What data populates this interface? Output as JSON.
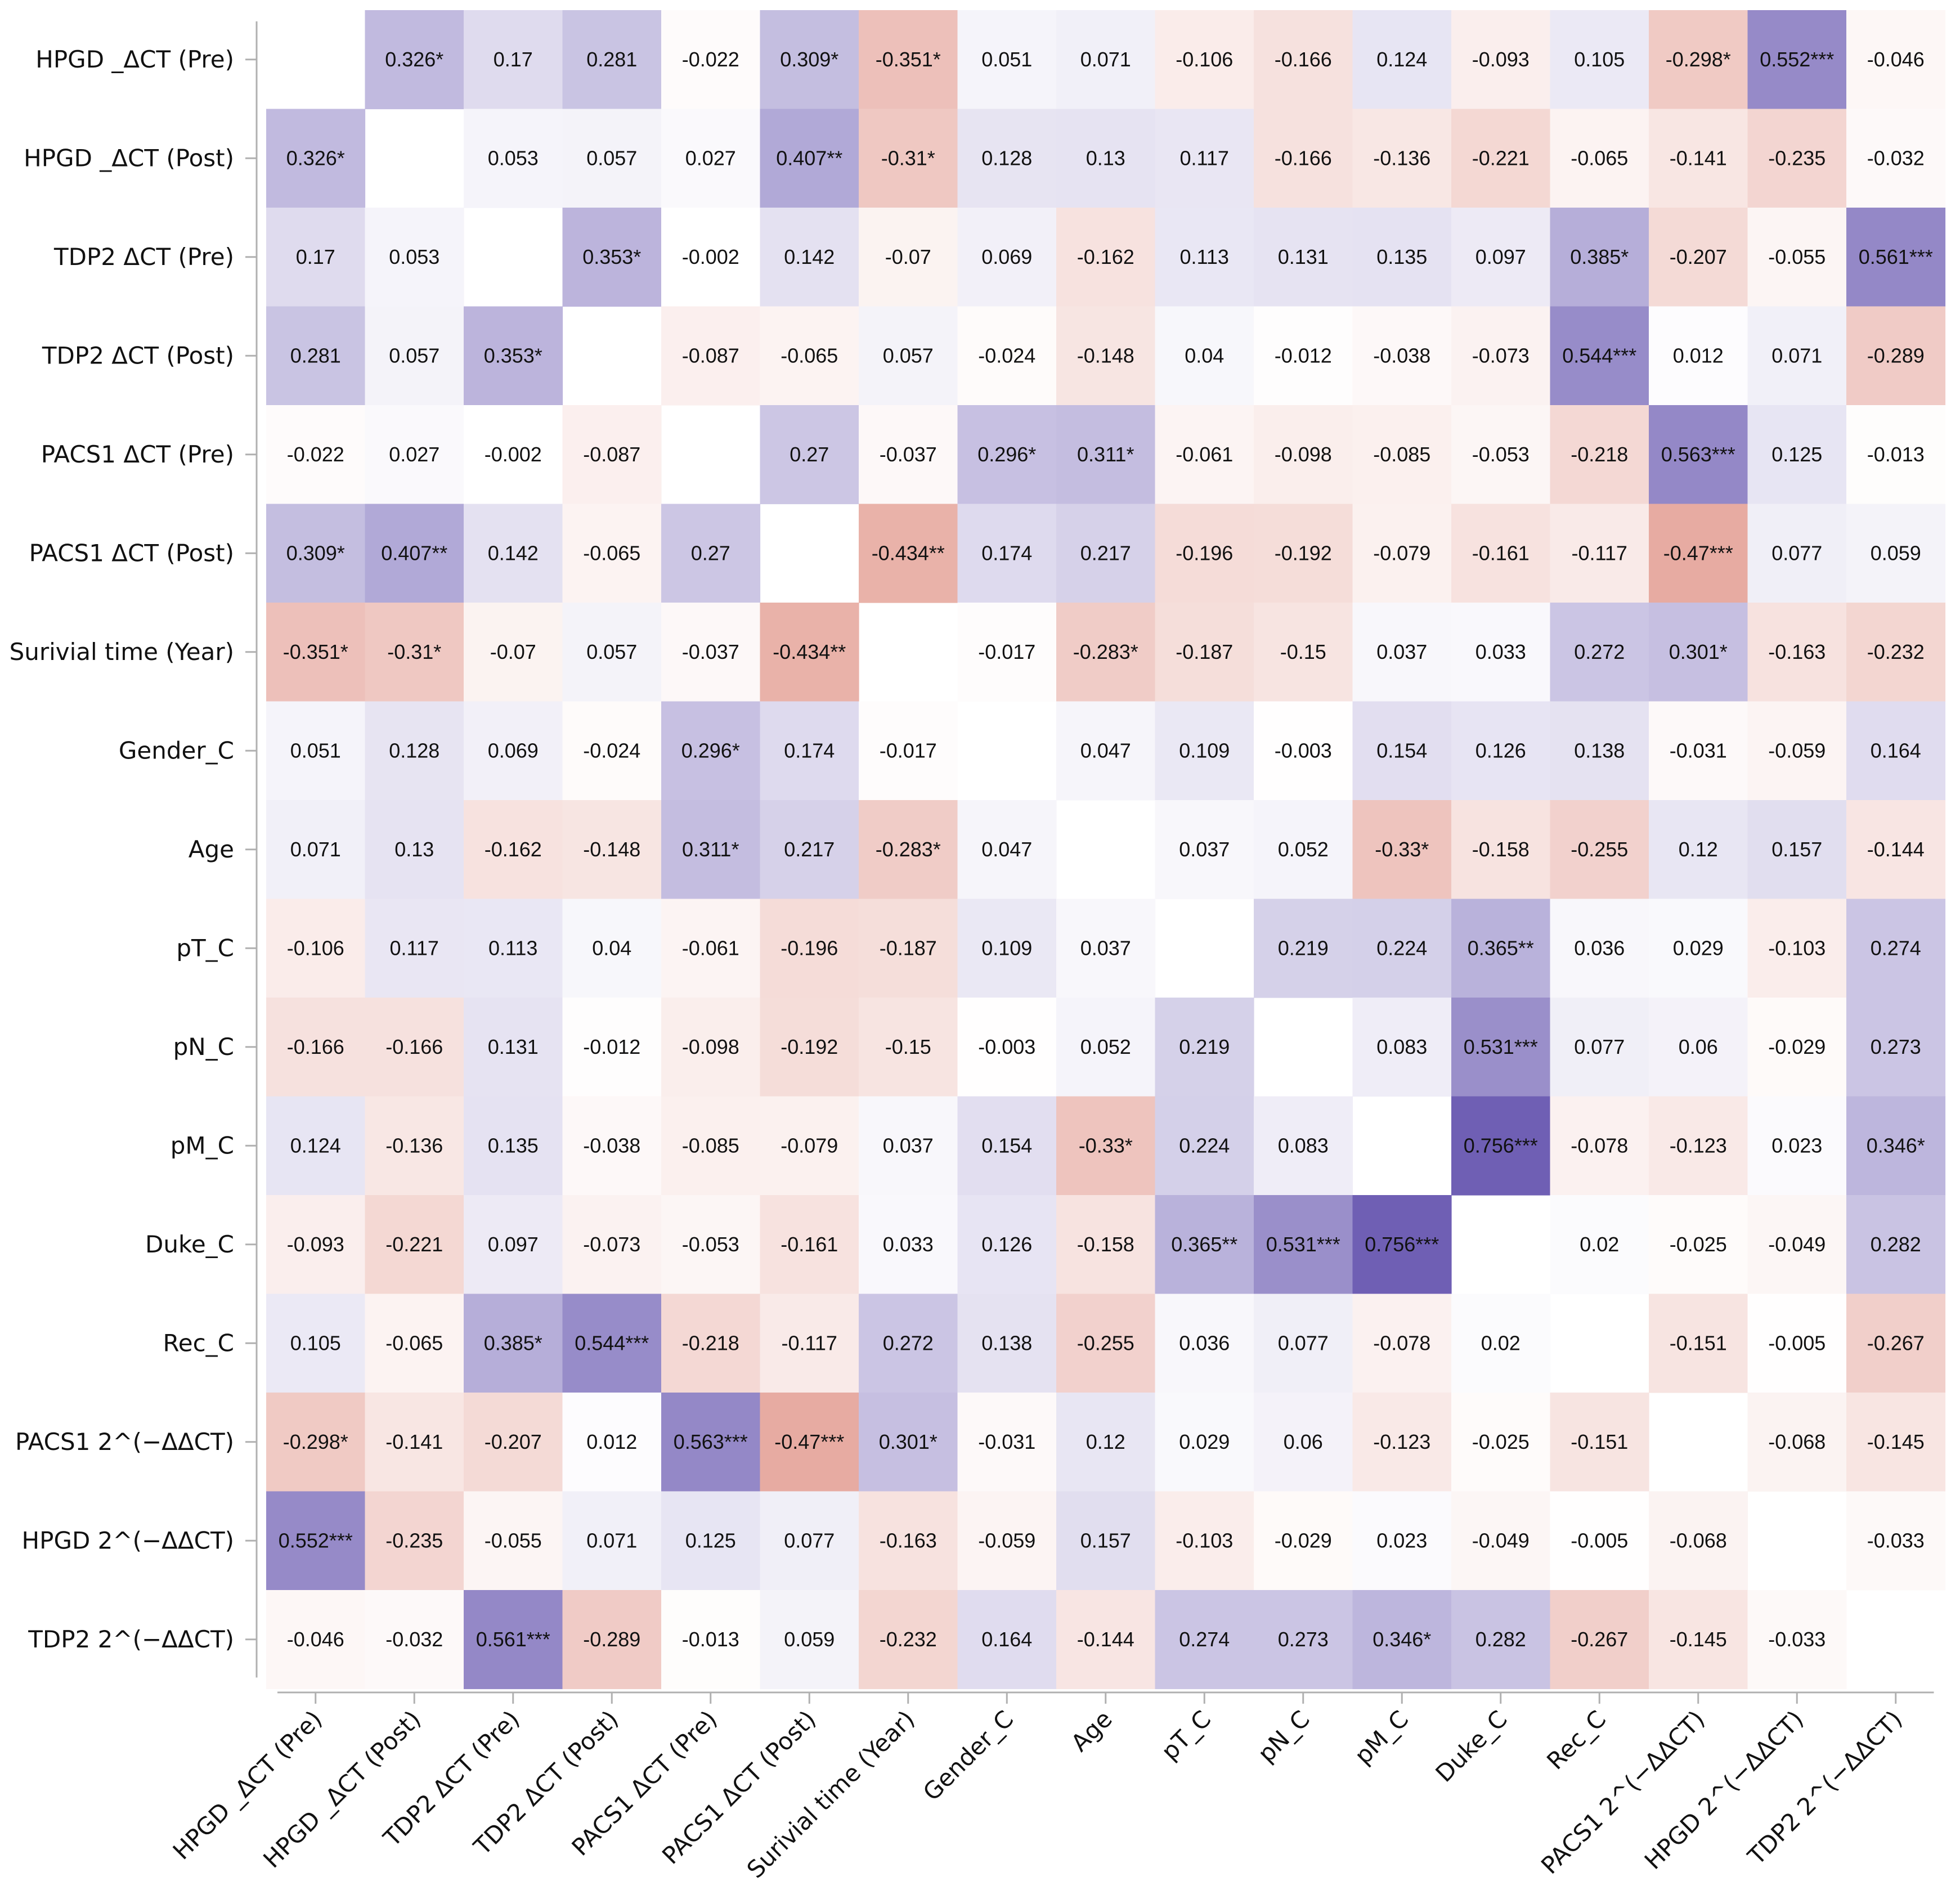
{
  "chart_data": {
    "type": "heatmap",
    "title": "",
    "labels": [
      "HPGD _ΔCT (Pre)",
      "HPGD _ΔCT (Post)",
      "TDP2 ΔCT (Pre)",
      "TDP2 ΔCT (Post)",
      "PACS1 ΔCT (Pre)",
      "PACS1 ΔCT (Post)",
      "Surivial time (Year)",
      "Gender_C",
      "Age",
      "pT_C",
      "pN_C",
      "pM_C",
      "Duke_C",
      "Rec_C",
      "PACS1 2^(−ΔΔCT)",
      "HPGD  2^(−ΔΔCT)",
      "TDP2 2^(−ΔΔCT)"
    ],
    "cells": [
      [
        "",
        "0.326*",
        "0.17",
        "0.281",
        "-0.022",
        "0.309*",
        "-0.351*",
        "0.051",
        "0.071",
        "-0.106",
        "-0.166",
        "0.124",
        "-0.093",
        "0.105",
        "-0.298*",
        "0.552***",
        "-0.046"
      ],
      [
        "0.326*",
        "",
        "0.053",
        "0.057",
        "0.027",
        "0.407**",
        "-0.31*",
        "0.128",
        "0.13",
        "0.117",
        "-0.166",
        "-0.136",
        "-0.221",
        "-0.065",
        "-0.141",
        "-0.235",
        "-0.032"
      ],
      [
        "0.17",
        "0.053",
        "",
        "0.353*",
        "-0.002",
        "0.142",
        "-0.07",
        "0.069",
        "-0.162",
        "0.113",
        "0.131",
        "0.135",
        "0.097",
        "0.385*",
        "-0.207",
        "-0.055",
        "0.561***"
      ],
      [
        "0.281",
        "0.057",
        "0.353*",
        "",
        "-0.087",
        "-0.065",
        "0.057",
        "-0.024",
        "-0.148",
        "0.04",
        "-0.012",
        "-0.038",
        "-0.073",
        "0.544***",
        "0.012",
        "0.071",
        "-0.289"
      ],
      [
        "-0.022",
        "0.027",
        "-0.002",
        "-0.087",
        "",
        "0.27",
        "-0.037",
        "0.296*",
        "0.311*",
        "-0.061",
        "-0.098",
        "-0.085",
        "-0.053",
        "-0.218",
        "0.563***",
        "0.125",
        "-0.013"
      ],
      [
        "0.309*",
        "0.407**",
        "0.142",
        "-0.065",
        "0.27",
        "",
        "-0.434**",
        "0.174",
        "0.217",
        "-0.196",
        "-0.192",
        "-0.079",
        "-0.161",
        "-0.117",
        "-0.47***",
        "0.077",
        "0.059"
      ],
      [
        "-0.351*",
        "-0.31*",
        "-0.07",
        "0.057",
        "-0.037",
        "-0.434**",
        "",
        "-0.017",
        "-0.283*",
        "-0.187",
        "-0.15",
        "0.037",
        "0.033",
        "0.272",
        "0.301*",
        "-0.163",
        "-0.232"
      ],
      [
        "0.051",
        "0.128",
        "0.069",
        "-0.024",
        "0.296*",
        "0.174",
        "-0.017",
        "",
        "0.047",
        "0.109",
        "-0.003",
        "0.154",
        "0.126",
        "0.138",
        "-0.031",
        "-0.059",
        "0.164"
      ],
      [
        "0.071",
        "0.13",
        "-0.162",
        "-0.148",
        "0.311*",
        "0.217",
        "-0.283*",
        "0.047",
        "",
        "0.037",
        "0.052",
        "-0.33*",
        "-0.158",
        "-0.255",
        "0.12",
        "0.157",
        "-0.144"
      ],
      [
        "-0.106",
        "0.117",
        "0.113",
        "0.04",
        "-0.061",
        "-0.196",
        "-0.187",
        "0.109",
        "0.037",
        "",
        "0.219",
        "0.224",
        "0.365**",
        "0.036",
        "0.029",
        "-0.103",
        "0.274"
      ],
      [
        "-0.166",
        "-0.166",
        "0.131",
        "-0.012",
        "-0.098",
        "-0.192",
        "-0.15",
        "-0.003",
        "0.052",
        "0.219",
        "",
        "0.083",
        "0.531***",
        "0.077",
        "0.06",
        "-0.029",
        "0.273"
      ],
      [
        "0.124",
        "-0.136",
        "0.135",
        "-0.038",
        "-0.085",
        "-0.079",
        "0.037",
        "0.154",
        "-0.33*",
        "0.224",
        "0.083",
        "",
        "0.756***",
        "-0.078",
        "-0.123",
        "0.023",
        "0.346*"
      ],
      [
        "-0.093",
        "-0.221",
        "0.097",
        "-0.073",
        "-0.053",
        "-0.161",
        "0.033",
        "0.126",
        "-0.158",
        "0.365**",
        "0.531***",
        "0.756***",
        "",
        "0.02",
        "-0.025",
        "-0.049",
        "0.282"
      ],
      [
        "0.105",
        "-0.065",
        "0.385*",
        "0.544***",
        "-0.218",
        "-0.117",
        "0.272",
        "0.138",
        "-0.255",
        "0.036",
        "0.077",
        "-0.078",
        "0.02",
        "",
        "-0.151",
        "-0.005",
        "-0.267"
      ],
      [
        "-0.298*",
        "-0.141",
        "-0.207",
        "0.012",
        "0.563***",
        "-0.47***",
        "0.301*",
        "-0.031",
        "0.12",
        "0.029",
        "0.06",
        "-0.123",
        "-0.025",
        "-0.151",
        "",
        "-0.068",
        "-0.145"
      ],
      [
        "0.552***",
        "-0.235",
        "-0.055",
        "0.071",
        "0.125",
        "0.077",
        "-0.163",
        "-0.059",
        "0.157",
        "-0.103",
        "-0.029",
        "0.023",
        "-0.049",
        "-0.005",
        "-0.068",
        "",
        "-0.033"
      ],
      [
        "-0.046",
        "-0.032",
        "0.561***",
        "-0.289",
        "-0.013",
        "0.059",
        "-0.232",
        "0.164",
        "-0.144",
        "0.274",
        "0.273",
        "0.346*",
        "0.282",
        "-0.267",
        "-0.145",
        "-0.033",
        ""
      ]
    ],
    "value_range": [
      -0.756,
      0.756
    ],
    "colors": {
      "positive": "#6f5fb4",
      "negative": "#d8786a",
      "neutral": "#ffffff",
      "axis": "#b0b0b0"
    }
  }
}
